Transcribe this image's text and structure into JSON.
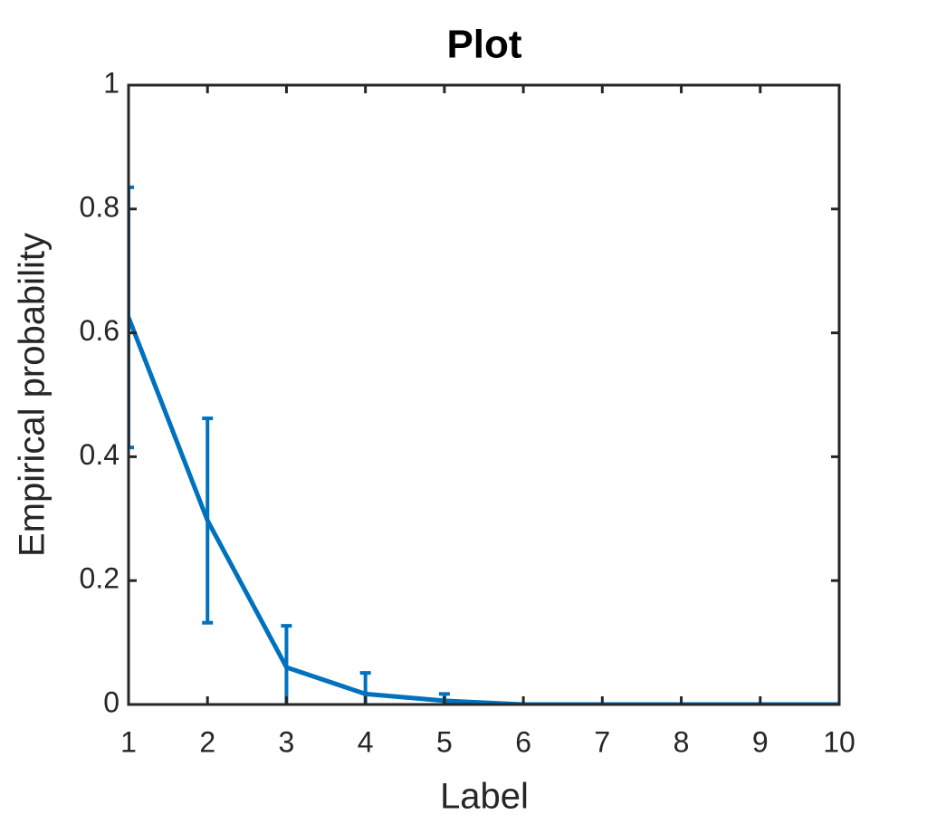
{
  "chart_data": {
    "type": "line",
    "title": "Plot",
    "x_label": "Label",
    "y_label": "Empirical probability",
    "x": [
      1,
      2,
      3,
      4,
      5,
      6,
      7,
      8,
      9,
      10
    ],
    "values": [
      0.625,
      0.297,
      0.06,
      0.017,
      0.006,
      0,
      0,
      0,
      0,
      0
    ],
    "errors": [
      0.21,
      0.165,
      0.067,
      0.034,
      0.011,
      0,
      0,
      0,
      0,
      0
    ],
    "color": "#0072bd",
    "xlim": [
      1,
      10
    ],
    "xticks": [
      1,
      2,
      3,
      4,
      5,
      6,
      7,
      8,
      9,
      10
    ],
    "ylim": [
      0,
      1
    ],
    "yticks": [
      0,
      0.2,
      0.4,
      0.6,
      0.8,
      1
    ],
    "grid": false
  }
}
